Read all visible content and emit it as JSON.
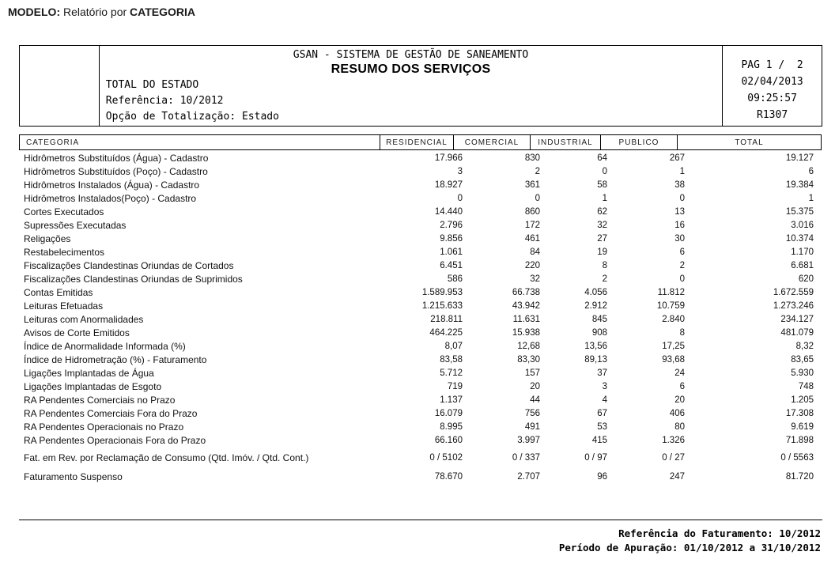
{
  "modelo": {
    "label": "MODELO:",
    "text": " Relatório por ",
    "category": "CATEGORIA"
  },
  "header": {
    "system_title": "GSAN - SISTEMA DE GESTÃO DE SANEAMENTO",
    "report_title": "RESUMO DOS SERVIÇOS",
    "scope": "TOTAL DO ESTADO",
    "reference": "Referência: 10/2012",
    "totalization": "Opção de Totalização: Estado",
    "page_info": "PAG 1 /  2",
    "date": "02/04/2013",
    "time": "09:25:57",
    "report_code": "R1307"
  },
  "table": {
    "columns": [
      "CATEGORIA",
      "RESIDENCIAL",
      "COMERCIAL",
      "INDUSTRIAL",
      "PUBLICO",
      "TOTAL"
    ],
    "rows": [
      {
        "label": "Hidrômetros Substituídos (Água) - Cadastro",
        "values": [
          "17.966",
          "830",
          "64",
          "267",
          "19.127"
        ]
      },
      {
        "label": "Hidrômetros Substituídos (Poço) - Cadastro",
        "values": [
          "3",
          "2",
          "0",
          "1",
          "6"
        ]
      },
      {
        "label": "Hidrômetros Instalados (Água) - Cadastro",
        "values": [
          "18.927",
          "361",
          "58",
          "38",
          "19.384"
        ]
      },
      {
        "label": "Hidrômetros Instalados(Poço) - Cadastro",
        "values": [
          "0",
          "0",
          "1",
          "0",
          "1"
        ]
      },
      {
        "label": "Cortes Executados",
        "values": [
          "14.440",
          "860",
          "62",
          "13",
          "15.375"
        ]
      },
      {
        "label": "Supressões Executadas",
        "values": [
          "2.796",
          "172",
          "32",
          "16",
          "3.016"
        ]
      },
      {
        "label": "Religações",
        "values": [
          "9.856",
          "461",
          "27",
          "30",
          "10.374"
        ]
      },
      {
        "label": "Restabelecimentos",
        "values": [
          "1.061",
          "84",
          "19",
          "6",
          "1.170"
        ]
      },
      {
        "label": "Fiscalizações Clandestinas Oriundas de Cortados",
        "values": [
          "6.451",
          "220",
          "8",
          "2",
          "6.681"
        ]
      },
      {
        "label": "Fiscalizações Clandestinas Oriundas de Suprimidos",
        "values": [
          "586",
          "32",
          "2",
          "0",
          "620"
        ]
      },
      {
        "label": "Contas Emitidas",
        "values": [
          "1.589.953",
          "66.738",
          "4.056",
          "11.812",
          "1.672.559"
        ]
      },
      {
        "label": "Leituras Efetuadas",
        "values": [
          "1.215.633",
          "43.942",
          "2.912",
          "10.759",
          "1.273.246"
        ]
      },
      {
        "label": "Leituras com Anormalidades",
        "values": [
          "218.811",
          "11.631",
          "845",
          "2.840",
          "234.127"
        ]
      },
      {
        "label": "Avisos de Corte Emitidos",
        "values": [
          "464.225",
          "15.938",
          "908",
          "8",
          "481.079"
        ]
      },
      {
        "label": "Índice de Anormalidade Informada (%)",
        "values": [
          "8,07",
          "12,68",
          "13,56",
          "17,25",
          "8,32"
        ]
      },
      {
        "label": "Índice de Hidrometração (%) - Faturamento",
        "values": [
          "83,58",
          "83,30",
          "89,13",
          "93,68",
          "83,65"
        ]
      },
      {
        "label": "Ligações Implantadas de Água",
        "values": [
          "5.712",
          "157",
          "37",
          "24",
          "5.930"
        ]
      },
      {
        "label": "Ligações Implantadas de Esgoto",
        "values": [
          "719",
          "20",
          "3",
          "6",
          "748"
        ]
      },
      {
        "label": "RA Pendentes Comerciais no Prazo",
        "values": [
          "1.137",
          "44",
          "4",
          "20",
          "1.205"
        ]
      },
      {
        "label": "RA Pendentes Comerciais Fora do Prazo",
        "values": [
          "16.079",
          "756",
          "67",
          "406",
          "17.308"
        ]
      },
      {
        "label": "RA Pendentes Operacionais no Prazo",
        "values": [
          "8.995",
          "491",
          "53",
          "80",
          "9.619"
        ]
      },
      {
        "label": "RA Pendentes Operacionais Fora do Prazo",
        "values": [
          "66.160",
          "3.997",
          "415",
          "1.326",
          "71.898"
        ]
      },
      {
        "label": "Fat. em Rev. por Reclamação de Consumo (Qtd. Imóv. / Qtd. Cont.)",
        "values": [
          "0 / 5102",
          "0 / 337",
          "0 / 97",
          "0 / 27",
          "0 / 5563"
        ]
      },
      {
        "label": "Faturamento Suspenso",
        "values": [
          "78.670",
          "2.707",
          "96",
          "247",
          "81.720"
        ]
      }
    ]
  },
  "footer": {
    "billing_reference": "Referência do Faturamento: 10/2012",
    "period": "Período de Apuração: 01/10/2012 a 31/10/2012"
  }
}
